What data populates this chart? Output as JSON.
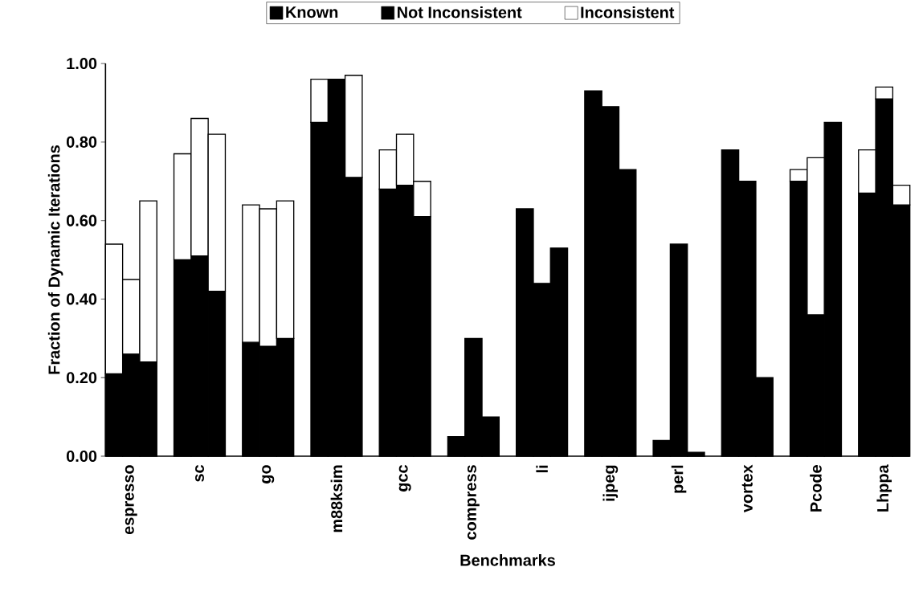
{
  "chart_data": {
    "type": "bar",
    "stacked": true,
    "xlabel": "Benchmarks",
    "ylabel": "Fraction of Dynamic Iterations",
    "categories": [
      null,
      "espresso",
      null,
      null,
      null,
      "sc",
      null,
      null,
      null,
      "go",
      null,
      null,
      null,
      "m88ksim",
      null,
      null,
      null,
      "gcc",
      null,
      null,
      null,
      "compress",
      null,
      null,
      null,
      "li",
      null,
      null,
      null,
      "ijpeg",
      null,
      null,
      null,
      "perl",
      null,
      null,
      null,
      "vortex",
      null,
      null,
      null,
      "Pcode",
      null,
      null,
      null,
      "Lhppa",
      null
    ],
    "series": [
      {
        "name": "Known",
        "color": "#000000",
        "values": [
          0.21,
          0.26,
          0.24,
          null,
          0.5,
          0.51,
          0.42,
          null,
          0.29,
          0.28,
          0.3,
          null,
          0.85,
          0.96,
          0.71,
          null,
          0.68,
          0.69,
          0.61,
          null,
          0.05,
          0.3,
          0.1,
          null,
          0.63,
          0.44,
          0.53,
          null,
          0.93,
          0.89,
          0.73,
          null,
          0.04,
          0.54,
          0.01,
          null,
          0.78,
          0.7,
          0.2,
          null,
          0.7,
          0.36,
          0.85,
          null,
          0.67,
          0.91,
          0.64
        ]
      },
      {
        "name": "Not Inconsistent",
        "color": "#000000",
        "values": [
          null,
          null,
          null,
          null,
          null,
          null,
          null,
          null,
          null,
          null,
          null,
          null,
          null,
          null,
          null,
          null,
          null,
          null,
          null,
          null,
          null,
          null,
          null,
          null,
          null,
          null,
          null,
          null,
          null,
          null,
          null,
          null,
          null,
          null,
          null,
          null,
          null,
          null,
          null,
          null,
          null,
          null,
          null,
          null,
          null,
          null,
          null
        ]
      },
      {
        "name": "Inconsistent",
        "color": "#ffffff",
        "values": [
          0.33,
          0.19,
          0.41,
          null,
          0.27,
          0.35,
          0.4,
          null,
          0.35,
          0.35,
          0.35,
          null,
          0.11,
          0,
          0.26,
          null,
          0.1,
          0.13,
          0.09,
          null,
          0,
          0,
          0,
          null,
          0,
          0,
          0,
          null,
          0,
          0,
          0,
          null,
          0,
          0,
          0,
          null,
          0,
          0,
          0,
          null,
          0.03,
          0.4,
          0,
          null,
          0.11,
          0.03,
          0.05
        ]
      }
    ],
    "ylim": [
      0,
      1
    ],
    "yticks": [
      {
        "value": 0,
        "label": "0.00"
      },
      {
        "value": 0.2,
        "label": "0.20"
      },
      {
        "value": 0.4,
        "label": "0.40"
      },
      {
        "value": 0.6,
        "label": "0.60"
      },
      {
        "value": 0.8,
        "label": "0.80"
      },
      {
        "value": 1,
        "label": "1.00"
      }
    ],
    "grid": false,
    "legend": "top"
  }
}
